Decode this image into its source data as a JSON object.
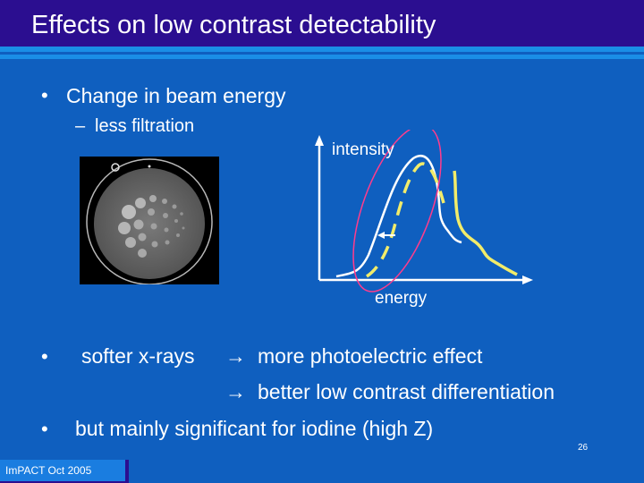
{
  "slide": {
    "title": "Effects on low contrast detectability",
    "bullet_main": "Change in beam energy",
    "sub_bullet": "less filtration",
    "sub_dash": "–",
    "bullet_char": "•",
    "line1_left": "softer x-rays",
    "line1_right": "more photoelectric effect",
    "line2": "better low contrast differentiation",
    "arrow": "→",
    "line3": "but mainly significant for iodine (high Z)",
    "page_number": "26",
    "footer": "ImPACT Oct 2005"
  },
  "diagram": {
    "y_label": "intensity",
    "x_label": "energy"
  },
  "colors": {
    "background": "#0f5fbf",
    "title_bar": "#2b0e90",
    "curve_white": "#ffffff",
    "curve_yellow": "#f2ec6a",
    "ellipse": "#ff3c8c"
  }
}
